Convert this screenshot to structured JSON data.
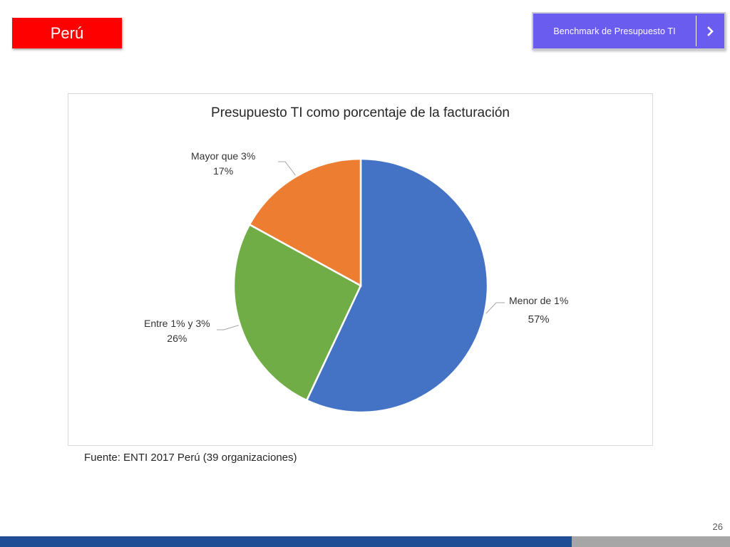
{
  "header": {
    "country": "Perú",
    "nav_button_label": "Benchmark de Presupuesto TI"
  },
  "colors": {
    "badge": "#ff0000",
    "nav_button": "#6b5cf0",
    "footer_left": "#1f4e95",
    "footer_right": "#a6a6a6"
  },
  "chart_data": {
    "type": "pie",
    "title": "Presupuesto TI como porcentaje de la facturación",
    "categories": [
      "Menor de 1%",
      "Entre 1% y 3%",
      "Mayor que 3%"
    ],
    "values": [
      57,
      26,
      17
    ],
    "value_labels": [
      "57%",
      "26%",
      "17%"
    ],
    "colors": [
      "#4472c4",
      "#70ad47",
      "#ed7d31"
    ],
    "start_angle_deg": 0,
    "direction": "clockwise"
  },
  "source": "Fuente: ENTI 2017 Perú (39 organizaciones)",
  "page_number": "26"
}
